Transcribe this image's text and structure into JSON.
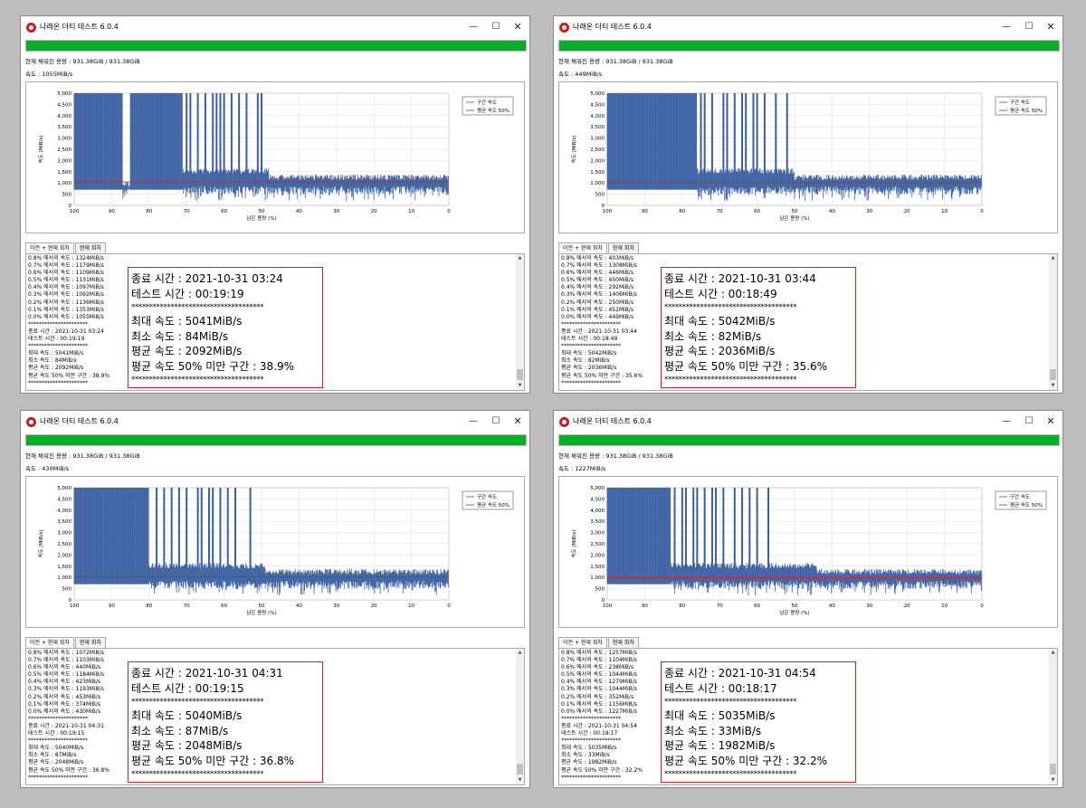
{
  "common": {
    "app_title": "나래온 더티 테스트 6.0.4",
    "capacity_text": "현재 채워진 용량 : 931.38GiB / 931.38GiB",
    "tab_labels": [
      "이전 + 현재 회차",
      "현재 회차"
    ],
    "legend": [
      "구간 속도",
      "평균 속도 50%"
    ],
    "y_axis_label": "속도 (MiB/s)",
    "x_axis_label": "남은 용량 (%)",
    "y_ticks": [
      "5,000",
      "4,500",
      "4,000",
      "3,500",
      "3,000",
      "2,500",
      "2,000",
      "1,500",
      "1,000",
      "500",
      "0"
    ],
    "x_ticks": [
      "100",
      "90",
      "80",
      "70",
      "60",
      "50",
      "40",
      "30",
      "20",
      "10",
      "0"
    ],
    "window_buttons": {
      "minimize": "—",
      "maximize": "☐",
      "close": "✕"
    },
    "log_labels": [
      "0.8% 에서의 속도",
      "0.7% 에서의 속도",
      "0.6% 에서의 속도",
      "0.5% 에서의 속도",
      "0.4% 에서의 속도",
      "0.3% 에서의 속도",
      "0.2% 에서의 속도",
      "0.1% 에서의 속도",
      "0.0% 에서의 속도"
    ],
    "stars_long": "*************************************",
    "stars_short": "**********************",
    "colors": {
      "series": "#3a5ea2",
      "avg": "#c0282c",
      "progress": "#06b025",
      "highlight": "#d42020"
    }
  },
  "windows": [
    {
      "speed_text": "속도 : 1055MiB/s",
      "log_speeds": [
        "1324MiB/s",
        "1179MiB/s",
        "1109MiB/s",
        "1131MiB/s",
        "1097MiB/s",
        "1092MiB/s",
        "1136MiB/s",
        "1353MiB/s",
        "1055MiB/s"
      ],
      "end_time": "2021-10-31 03:24",
      "test_time": "00:19:19",
      "max_speed": "5041MiB/s",
      "min_speed": "84MiB/s",
      "avg_speed": "2092MiB/s",
      "below_avg": "38.9%",
      "lines": {
        "end": "종료 시간 : 2021-10-31 03:24",
        "test": "테스트 시간 : 00:19:19",
        "max": "최대 속도 : 5041MiB/s",
        "min": "최소 속도 : 84MiB/s",
        "avg": "평균 속도 : 2092MiB/s",
        "below": "평균 속도 50% 미만 구간 : 38.9%"
      },
      "chart_data": {
        "type": "area",
        "x_label": "남은 용량 (%)",
        "y_label": "속도 (MiB/s)",
        "xlim": [
          100,
          0
        ],
        "ylim": [
          0,
          5000
        ],
        "series": [
          {
            "name": "구간 속도",
            "segments": [
              {
                "from": 100,
                "to": 87,
                "level": 5000
              },
              {
                "from": 87,
                "to": 85,
                "level": 1050
              },
              {
                "from": 85,
                "to": 71,
                "level": 5000
              },
              {
                "from": 71,
                "to": 48,
                "level": 1650
              },
              {
                "from": 48,
                "to": 0,
                "level": 1380
              }
            ],
            "spike_positions": [
              70,
              69,
              67,
              65,
              63,
              62,
              61,
              60,
              58,
              56,
              54,
              51,
              50
            ]
          },
          {
            "name": "평균 속도 50%",
            "value": 1046
          }
        ]
      }
    },
    {
      "speed_text": "속도 : 449MiB/s",
      "log_speeds": [
        "403MiB/s",
        "1308MiB/s",
        "446MiB/s",
        "450MiB/s",
        "292MiB/s",
        "1406MiB/s",
        "250MiB/s",
        "451MiB/s",
        "449MiB/s"
      ],
      "end_time": "2021-10-31 03:44",
      "test_time": "00:18:49",
      "max_speed": "5042MiB/s",
      "min_speed": "82MiB/s",
      "avg_speed": "2036MiB/s",
      "below_avg": "35.6%",
      "lines": {
        "end": "종료 시간 : 2021-10-31 03:44",
        "test": "테스트 시간 : 00:18:49",
        "max": "최대 속도 : 5042MiB/s",
        "min": "최소 속도 : 82MiB/s",
        "avg": "평균 속도 : 2036MiB/s",
        "below": "평균 속도 50% 미만 구간 : 35.6%"
      },
      "chart_data": {
        "type": "area",
        "x_label": "남은 용량 (%)",
        "y_label": "속도 (MiB/s)",
        "xlim": [
          100,
          0
        ],
        "ylim": [
          0,
          5000
        ],
        "series": [
          {
            "name": "구간 속도",
            "segments": [
              {
                "from": 100,
                "to": 76,
                "level": 5000
              },
              {
                "from": 76,
                "to": 50,
                "level": 1650
              },
              {
                "from": 50,
                "to": 0,
                "level": 1380
              }
            ],
            "spike_positions": [
              75,
              74,
              72,
              69,
              68,
              66,
              64,
              63,
              61,
              60,
              58,
              55,
              52
            ]
          },
          {
            "name": "평균 속도 50%",
            "value": 1018
          }
        ]
      }
    },
    {
      "speed_text": "속도 : 430MiB/s",
      "log_speeds": [
        "1072MiB/s",
        "1103MiB/s",
        "440MiB/s",
        "1184MiB/s",
        "423MiB/s",
        "1193MiB/s",
        "453MiB/s",
        "374MiB/s",
        "430MiB/s"
      ],
      "end_time": "2021-10-31 04:31",
      "test_time": "00:19:15",
      "max_speed": "5040MiB/s",
      "min_speed": "87MiB/s",
      "avg_speed": "2048MiB/s",
      "below_avg": "36.8%",
      "lines": {
        "end": "종료 시간 : 2021-10-31 04:31",
        "test": "테스트 시간 : 00:19:15",
        "max": "최대 속도 : 5040MiB/s",
        "min": "최소 속도 : 87MiB/s",
        "avg": "평균 속도 : 2048MiB/s",
        "below": "평균 속도 50% 미만 구간 : 36.8%"
      },
      "chart_data": {
        "type": "area",
        "x_label": "남은 용량 (%)",
        "y_label": "속도 (MiB/s)",
        "xlim": [
          100,
          0
        ],
        "ylim": [
          0,
          5000
        ],
        "series": [
          {
            "name": "구간 속도",
            "segments": [
              {
                "from": 100,
                "to": 80,
                "level": 5000
              },
              {
                "from": 80,
                "to": 49,
                "level": 1650
              },
              {
                "from": 49,
                "to": 0,
                "level": 1380
              }
            ],
            "spike_positions": [
              78,
              76,
              74,
              72,
              70,
              67,
              66,
              64,
              63,
              61,
              59,
              57,
              53
            ]
          },
          {
            "name": "평균 속도 50%",
            "value": 1024
          }
        ]
      }
    },
    {
      "speed_text": "속도 : 1227MiB/s",
      "log_speeds": [
        "1257MiB/s",
        "1104MiB/s",
        "238MiB/s",
        "1044MiB/s",
        "1279MiB/s",
        "1044MiB/s",
        "352MiB/s",
        "1156MiB/s",
        "1227MiB/s"
      ],
      "end_time": "2021-10-31 04:54",
      "test_time": "00:18:17",
      "max_speed": "5035MiB/s",
      "min_speed": "33MiB/s",
      "avg_speed": "1982MiB/s",
      "below_avg": "32.2%",
      "lines": {
        "end": "종료 시간 : 2021-10-31 04:54",
        "test": "테스트 시간 : 00:18:17",
        "max": "최대 속도 : 5035MiB/s",
        "min": "최소 속도 : 33MiB/s",
        "avg": "평균 속도 : 1982MiB/s",
        "below": "평균 속도 50% 미만 구간 : 32.2%"
      },
      "chart_data": {
        "type": "area",
        "x_label": "남은 용량 (%)",
        "y_label": "속도 (MiB/s)",
        "xlim": [
          100,
          0
        ],
        "ylim": [
          0,
          5000
        ],
        "series": [
          {
            "name": "구간 속도",
            "segments": [
              {
                "from": 100,
                "to": 83,
                "level": 5000
              },
              {
                "from": 83,
                "to": 44,
                "level": 1650
              },
              {
                "from": 44,
                "to": 0,
                "level": 1380
              }
            ],
            "spike_positions": [
              82,
              80,
              79,
              77,
              76,
              74,
              72,
              71,
              69,
              66,
              64,
              62,
              60,
              57
            ]
          },
          {
            "name": "평균 속도 50%",
            "value": 991
          }
        ]
      }
    }
  ]
}
